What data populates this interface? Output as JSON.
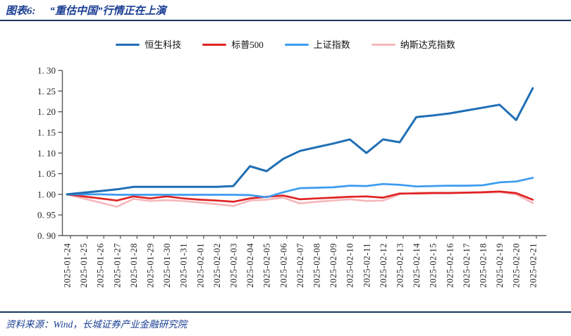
{
  "header": {
    "chart_label": "图表6:",
    "title": "“重估中国”行情正在上演"
  },
  "footer": {
    "source": "资料来源：Wind，长城证券产业金融研究院"
  },
  "colors": {
    "title_navy": "#1B3F94",
    "rule_navy": "#17375E",
    "axis_gray": "#595959",
    "hang_seng_tech_blue": "#1F6FB5",
    "sp500_red": "#E02222",
    "shanghai_blue": "#3D9BF0",
    "nasdaq_pink": "#F5B8BB"
  },
  "chart_data": {
    "type": "line",
    "title": "图表6: “重估中国”行情正在上演",
    "xlabel": "",
    "ylabel": "",
    "ylim": [
      0.9,
      1.3
    ],
    "ytick_step": 0.05,
    "ytick_labels": [
      "0. 90",
      "0. 95",
      "1. 00",
      "1. 05",
      "1. 10",
      "1. 15",
      "1. 20",
      "1. 25",
      "1. 30"
    ],
    "grid": false,
    "legend_position": "top-center",
    "x": [
      "2025-01-24",
      "2025-01-25",
      "2025-01-26",
      "2025-01-27",
      "2025-01-28",
      "2025-01-29",
      "2025-01-30",
      "2025-01-31",
      "2025-02-01",
      "2025-02-02",
      "2025-02-03",
      "2025-02-04",
      "2025-02-05",
      "2025-02-06",
      "2025-02-07",
      "2025-02-08",
      "2025-02-09",
      "2025-02-10",
      "2025-02-11",
      "2025-02-12",
      "2025-02-13",
      "2025-02-14",
      "2025-02-15",
      "2025-02-16",
      "2025-02-17",
      "2025-02-18",
      "2025-02-19",
      "2025-02-20",
      "2025-02-21"
    ],
    "series": [
      {
        "name": "恒生科技",
        "color": "#1F6FB5",
        "values": [
          1.0,
          1.004,
          1.008,
          1.012,
          1.018,
          1.018,
          1.018,
          1.018,
          1.018,
          1.018,
          1.02,
          1.068,
          1.056,
          1.086,
          1.105,
          1.114,
          1.123,
          1.133,
          1.1,
          1.133,
          1.126,
          1.187,
          1.191,
          1.196,
          1.203,
          1.21,
          1.217,
          1.18,
          1.257
        ]
      },
      {
        "name": "标普500",
        "color": "#E02222",
        "values": [
          1.0,
          0.995,
          0.99,
          0.985,
          0.995,
          0.99,
          0.995,
          0.99,
          0.987,
          0.985,
          0.982,
          0.99,
          0.994,
          0.997,
          0.988,
          0.99,
          0.992,
          0.994,
          0.995,
          0.992,
          1.002,
          1.002,
          1.003,
          1.003,
          1.004,
          1.005,
          1.007,
          1.003,
          0.987
        ]
      },
      {
        "name": "上证指数",
        "color": "#3D9BF0",
        "values": [
          1.0,
          1.0,
          1.0,
          0.999,
          0.999,
          0.999,
          0.999,
          0.999,
          0.999,
          0.999,
          0.999,
          0.998,
          0.993,
          1.005,
          1.015,
          1.016,
          1.017,
          1.021,
          1.02,
          1.025,
          1.023,
          1.019,
          1.02,
          1.021,
          1.021,
          1.022,
          1.029,
          1.031,
          1.04
        ]
      },
      {
        "name": "纳斯达克指数",
        "color": "#F5B8BB",
        "values": [
          1.0,
          0.99,
          0.98,
          0.97,
          0.989,
          0.984,
          0.986,
          0.984,
          0.98,
          0.976,
          0.972,
          0.985,
          0.987,
          0.992,
          0.978,
          0.982,
          0.985,
          0.988,
          0.984,
          0.985,
          1.0,
          1.004,
          1.004,
          1.004,
          1.004,
          1.004,
          1.005,
          1.0,
          0.979
        ]
      }
    ],
    "z_order": [
      3,
      1,
      2,
      0
    ]
  }
}
